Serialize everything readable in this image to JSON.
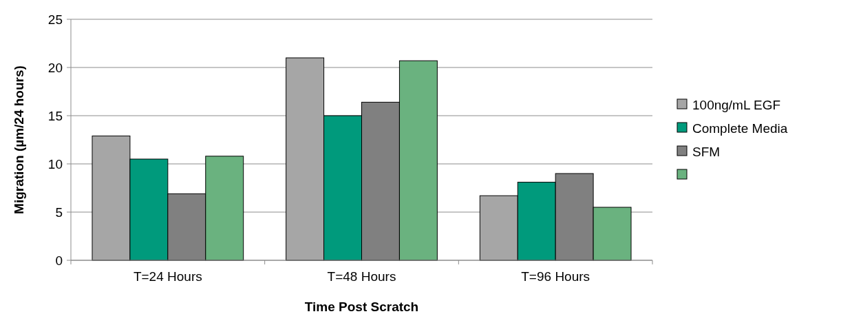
{
  "chart_data": {
    "type": "bar",
    "xlabel": "Time Post Scratch",
    "ylabel": "Migration (µm/24 hours)",
    "categories": [
      "T=24 Hours",
      "T=48 Hours",
      "T=96 Hours"
    ],
    "series": [
      {
        "name": "100ng/mL EGF",
        "color": "#a6a6a6",
        "values": [
          12.9,
          21,
          6.7
        ]
      },
      {
        "name": "Complete Media",
        "color": "#009a7c",
        "values": [
          10.5,
          15,
          8.1
        ]
      },
      {
        "name": "SFM",
        "color": "#808080",
        "values": [
          6.9,
          16.4,
          9
        ]
      },
      {
        "color": "#6ab27f",
        "values": [
          10.8,
          20.7,
          5.5
        ]
      }
    ],
    "ylim": [
      0,
      25
    ],
    "yticks": [
      0,
      5,
      10,
      15,
      20,
      25
    ],
    "grid": "y",
    "legend": "right"
  }
}
